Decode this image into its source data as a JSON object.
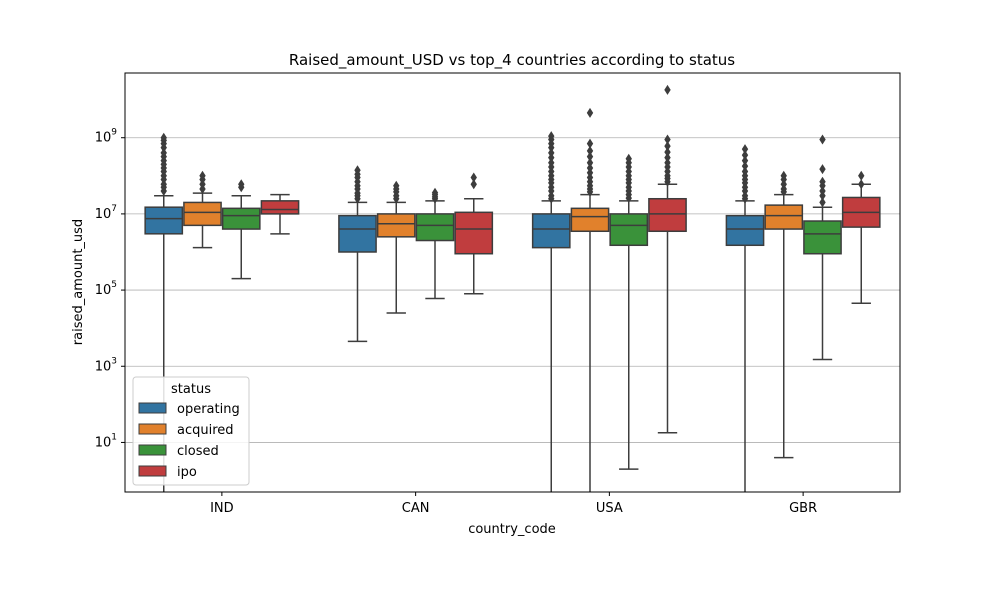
{
  "chart_data": {
    "type": "box",
    "title": "Raised_amount_USD vs top_4 countries according to status",
    "xlabel": "country_code",
    "ylabel": "raised_amount_usd",
    "yscale": "log",
    "ylim": [
      0.5,
      50000000000
    ],
    "yticks": [
      {
        "value": 10,
        "base": "10",
        "exp": "1"
      },
      {
        "value": 1000,
        "base": "10",
        "exp": "3"
      },
      {
        "value": 100000,
        "base": "10",
        "exp": "5"
      },
      {
        "value": 10000000,
        "base": "10",
        "exp": "7"
      },
      {
        "value": 1000000000,
        "base": "10",
        "exp": "9"
      }
    ],
    "grid": "horizontal",
    "categories": [
      "IND",
      "CAN",
      "USA",
      "GBR"
    ],
    "legend": {
      "title": "status",
      "position": "lower-left"
    },
    "series": [
      {
        "name": "operating",
        "color": "#3274a1",
        "boxes": [
          {
            "whislo": 0.1,
            "q1": 3000000,
            "med": 7500000,
            "q3": 15000000,
            "whishi": 30000000,
            "fliers": [
              40000000,
              50000000,
              60000000,
              80000000,
              100000000,
              130000000,
              160000000,
              200000000,
              250000000,
              320000000,
              400000000,
              550000000,
              700000000,
              850000000,
              1000000000
            ]
          },
          {
            "whislo": 4500,
            "q1": 1000000,
            "med": 4000000,
            "q3": 9000000,
            "whishi": 20000000,
            "fliers": [
              25000000,
              30000000,
              35000000,
              45000000,
              55000000,
              70000000,
              90000000,
              110000000,
              140000000
            ]
          },
          {
            "whislo": 0.1,
            "q1": 1300000,
            "med": 4000000,
            "q3": 10000000,
            "whishi": 22000000,
            "fliers": [
              25000000,
              30000000,
              40000000,
              50000000,
              65000000,
              80000000,
              100000000,
              130000000,
              170000000,
              220000000,
              300000000,
              400000000,
              550000000,
              700000000,
              900000000,
              1100000000
            ]
          },
          {
            "whislo": 0.1,
            "q1": 1500000,
            "med": 4000000,
            "q3": 9000000,
            "whishi": 22000000,
            "fliers": [
              25000000,
              30000000,
              40000000,
              50000000,
              65000000,
              80000000,
              100000000,
              130000000,
              180000000,
              250000000,
              350000000,
              500000000
            ]
          }
        ]
      },
      {
        "name": "acquired",
        "color": "#e1812c",
        "boxes": [
          {
            "whislo": 1300000,
            "q1": 5000000,
            "med": 11000000,
            "q3": 20000000,
            "whishi": 35000000,
            "fliers": [
              45000000,
              60000000,
              80000000,
              100000000
            ]
          },
          {
            "whislo": 25000,
            "q1": 2500000,
            "med": 5500000,
            "q3": 10000000,
            "whishi": 20000000,
            "fliers": [
              25000000,
              30000000,
              38000000,
              45000000,
              55000000
            ]
          },
          {
            "whislo": 0.1,
            "q1": 3500000,
            "med": 8500000,
            "q3": 14000000,
            "whishi": 32000000,
            "fliers": [
              38000000,
              45000000,
              55000000,
              70000000,
              90000000,
              120000000,
              160000000,
              220000000,
              320000000,
              450000000,
              700000000,
              4500000000
            ]
          },
          {
            "whislo": 4,
            "q1": 4000000,
            "med": 9000000,
            "q3": 17000000,
            "whishi": 32000000,
            "fliers": [
              38000000,
              45000000,
              60000000,
              80000000,
              100000000
            ]
          }
        ]
      },
      {
        "name": "closed",
        "color": "#3a923a",
        "boxes": [
          {
            "whislo": 200000,
            "q1": 4000000,
            "med": 9000000,
            "q3": 14000000,
            "whishi": 30000000,
            "fliers": [
              50000000,
              60000000
            ]
          },
          {
            "whislo": 60000,
            "q1": 2000000,
            "med": 5000000,
            "q3": 10000000,
            "whishi": 22000000,
            "fliers": [
              25000000,
              28000000,
              32000000,
              36000000
            ]
          },
          {
            "whislo": 2,
            "q1": 1500000,
            "med": 5000000,
            "q3": 10000000,
            "whishi": 22000000,
            "fliers": [
              26000000,
              32000000,
              40000000,
              50000000,
              65000000,
              80000000,
              100000000,
              130000000,
              170000000,
              220000000,
              280000000
            ]
          },
          {
            "whislo": 1500,
            "q1": 900000,
            "med": 3000000,
            "q3": 6500000,
            "whishi": 15000000,
            "fliers": [
              20000000,
              30000000,
              40000000,
              55000000,
              70000000,
              150000000,
              900000000
            ]
          }
        ]
      },
      {
        "name": "ipo",
        "color": "#c03d3e",
        "boxes": [
          {
            "whislo": 3000000,
            "q1": 10000000,
            "med": 13000000,
            "q3": 22000000,
            "whishi": 32000000,
            "fliers": []
          },
          {
            "whislo": 80000,
            "q1": 900000,
            "med": 4000000,
            "q3": 11000000,
            "whishi": 25000000,
            "fliers": [
              60000000,
              90000000
            ]
          },
          {
            "whislo": 18,
            "q1": 3500000,
            "med": 10000000,
            "q3": 25000000,
            "whishi": 60000000,
            "fliers": [
              70000000,
              85000000,
              100000000,
              130000000,
              170000000,
              220000000,
              300000000,
              420000000,
              600000000,
              900000000,
              18000000000
            ]
          },
          {
            "whislo": 45000,
            "q1": 4500000,
            "med": 11000000,
            "q3": 27000000,
            "whishi": 60000000,
            "fliers": [
              60000000,
              100000000
            ]
          }
        ]
      }
    ]
  }
}
